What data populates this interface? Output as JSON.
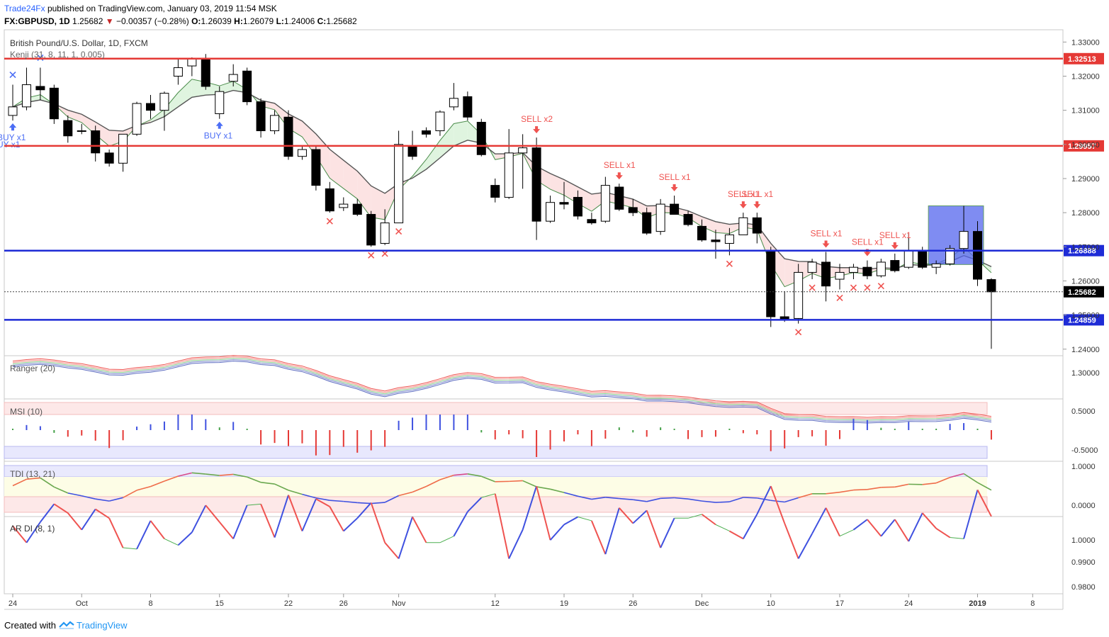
{
  "header": {
    "username": "Trade24Fx",
    "published_text": "published on TradingView.com, January 03, 2019 11:54 MSK",
    "symbol": "FX:GBPUSD, 1D",
    "last": "1.25682",
    "arrow": "▼",
    "change": "−0.00357 (−0.28%)",
    "o_label": "O:",
    "o_value": "1.26039",
    "h_label": "H:",
    "h_value": "1.26079",
    "l_label": "L:",
    "l_value": "1.24006",
    "c_label": "C:",
    "c_value": "1.25682"
  },
  "main_pane": {
    "title": "British Pound/U.S. Dollar, 1D, FXCM",
    "indicator_label": "Kenji (31, 8, 11, 1, 0.005)",
    "y_ticks": [
      "1.33000",
      "1.32000",
      "1.31000",
      "1.30000",
      "1.29000",
      "1.28000",
      "1.27000",
      "1.26000",
      "1.25000",
      "1.24000"
    ],
    "levels": [
      {
        "value": "1.32513",
        "color": "#e53935",
        "type": "resistance"
      },
      {
        "value": "1.29957",
        "color": "#e53935",
        "type": "resistance"
      },
      {
        "value": "1.26888",
        "color": "#1e2bd6",
        "type": "support"
      },
      {
        "value": "1.24859",
        "color": "#1e2bd6",
        "type": "support"
      }
    ],
    "last_price_label": "1.25682",
    "signals": [
      {
        "text": "BUY x1",
        "kind": "buy"
      },
      {
        "text": "BUY x1",
        "kind": "buy"
      },
      {
        "text": "UY x1",
        "kind": "buy"
      },
      {
        "text": "SELL x2",
        "kind": "sell"
      },
      {
        "text": "SELL x1",
        "kind": "sell"
      },
      {
        "text": "SELL x1",
        "kind": "sell"
      },
      {
        "text": "SELL x1",
        "kind": "sell"
      },
      {
        "text": "SELL x1",
        "kind": "sell"
      },
      {
        "text": "SELL x1",
        "kind": "sell"
      },
      {
        "text": "SELL x1",
        "kind": "sell"
      },
      {
        "text": "SELL x1",
        "kind": "sell"
      }
    ]
  },
  "ranger_pane": {
    "label": "Ranger (20)",
    "y_ticks": [
      "1.30000"
    ]
  },
  "msi_pane": {
    "label": "MSI (10)",
    "y_ticks": [
      "0.5000",
      "-0.5000"
    ]
  },
  "tdi_pane": {
    "label": "TDI (13, 21)",
    "y_ticks": [
      "1.0000",
      "0.0000"
    ]
  },
  "ardi_pane": {
    "label": "AR DI (8, 1)",
    "y_ticks": [
      "1.0000",
      "0.9900",
      "0.9800"
    ]
  },
  "x_axis": {
    "ticks": [
      "24",
      "Oct",
      "8",
      "15",
      "22",
      "26",
      "Nov",
      "12",
      "19",
      "26",
      "Dec",
      "10",
      "17",
      "24",
      "2019",
      "8"
    ]
  },
  "footer": {
    "created_with": "Created with",
    "brand": "TradingView"
  },
  "colors": {
    "bull": "#ffffff",
    "bear": "#000000",
    "resistance": "#e53935",
    "support": "#1e2bd6",
    "sell": "#ef5350",
    "buy": "#4c6ef5",
    "accent": "#2962ff"
  },
  "chart_data": {
    "type": "candlestick",
    "title": "British Pound/U.S. Dollar, 1D, FXCM",
    "ylim": [
      1.2385,
      1.3336
    ],
    "ohlc": [
      [
        1.3085,
        1.3175,
        1.307,
        1.311
      ],
      [
        1.311,
        1.3225,
        1.31,
        1.3175
      ],
      [
        1.317,
        1.3225,
        1.313,
        1.316
      ],
      [
        1.3165,
        1.3175,
        1.306,
        1.3075
      ],
      [
        1.307,
        1.3085,
        1.3005,
        1.3025
      ],
      [
        1.304,
        1.306,
        1.303,
        1.304
      ],
      [
        1.304,
        1.3055,
        1.295,
        1.2975
      ],
      [
        1.2975,
        1.2985,
        1.2935,
        1.2945
      ],
      [
        1.2945,
        1.303,
        1.292,
        1.303
      ],
      [
        1.303,
        1.3125,
        1.3025,
        1.312
      ],
      [
        1.312,
        1.3145,
        1.3075,
        1.31
      ],
      [
        1.31,
        1.3155,
        1.304,
        1.315
      ],
      [
        1.32,
        1.325,
        1.3175,
        1.3225
      ],
      [
        1.323,
        1.3255,
        1.32,
        1.325
      ],
      [
        1.325,
        1.3265,
        1.316,
        1.317
      ],
      [
        1.309,
        1.317,
        1.3075,
        1.3155
      ],
      [
        1.3185,
        1.3235,
        1.317,
        1.3205
      ],
      [
        1.3215,
        1.3225,
        1.3115,
        1.3125
      ],
      [
        1.3125,
        1.3135,
        1.302,
        1.304
      ],
      [
        1.304,
        1.31,
        1.303,
        1.3085
      ],
      [
        1.308,
        1.31,
        1.2955,
        1.2965
      ],
      [
        1.2965,
        1.2995,
        1.2955,
        1.2985
      ],
      [
        1.2985,
        1.2995,
        1.2865,
        1.288
      ],
      [
        1.287,
        1.289,
        1.28,
        1.2805
      ],
      [
        1.2815,
        1.2845,
        1.2805,
        1.2825
      ],
      [
        1.2825,
        1.284,
        1.279,
        1.2795
      ],
      [
        1.2795,
        1.2805,
        1.27,
        1.2705
      ],
      [
        1.271,
        1.281,
        1.2705,
        1.277
      ],
      [
        1.277,
        1.304,
        1.277,
        1.3
      ],
      [
        1.2995,
        1.304,
        1.2955,
        1.2965
      ],
      [
        1.304,
        1.305,
        1.302,
        1.303
      ],
      [
        1.304,
        1.31,
        1.3025,
        1.3095
      ],
      [
        1.311,
        1.318,
        1.31,
        1.3135
      ],
      [
        1.314,
        1.3155,
        1.307,
        1.308
      ],
      [
        1.3065,
        1.3075,
        1.2965,
        1.297
      ],
      [
        1.288,
        1.29,
        1.283,
        1.2845
      ],
      [
        1.2845,
        1.3045,
        1.284,
        1.2975
      ],
      [
        1.2975,
        1.303,
        1.287,
        1.299
      ],
      [
        1.299,
        1.302,
        1.272,
        1.2775
      ],
      [
        1.2775,
        1.285,
        1.277,
        1.283
      ],
      [
        1.283,
        1.289,
        1.281,
        1.2825
      ],
      [
        1.2845,
        1.2865,
        1.278,
        1.279
      ],
      [
        1.278,
        1.28,
        1.2765,
        1.277
      ],
      [
        1.2775,
        1.2905,
        1.277,
        1.288
      ],
      [
        1.2875,
        1.2885,
        1.2805,
        1.281
      ],
      [
        1.2815,
        1.284,
        1.279,
        1.28
      ],
      [
        1.28,
        1.2815,
        1.2735,
        1.274
      ],
      [
        1.2745,
        1.284,
        1.2735,
        1.2825
      ],
      [
        1.2825,
        1.285,
        1.2795,
        1.2795
      ],
      [
        1.2795,
        1.2805,
        1.276,
        1.2765
      ],
      [
        1.276,
        1.278,
        1.2715,
        1.272
      ],
      [
        1.272,
        1.275,
        1.2665,
        1.2715
      ],
      [
        1.271,
        1.2755,
        1.2675,
        1.2735
      ],
      [
        1.2735,
        1.28,
        1.2735,
        1.2785
      ],
      [
        1.2785,
        1.28,
        1.271,
        1.274
      ],
      [
        1.269,
        1.27,
        1.2465,
        1.2495
      ],
      [
        1.2495,
        1.257,
        1.248,
        1.2485
      ],
      [
        1.249,
        1.265,
        1.2475,
        1.2625
      ],
      [
        1.2625,
        1.2665,
        1.2605,
        1.2655
      ],
      [
        1.2655,
        1.2685,
        1.254,
        1.2585
      ],
      [
        1.2605,
        1.265,
        1.2575,
        1.2625
      ],
      [
        1.2625,
        1.265,
        1.2605,
        1.264
      ],
      [
        1.264,
        1.266,
        1.2605,
        1.2615
      ],
      [
        1.2615,
        1.2665,
        1.261,
        1.2655
      ],
      [
        1.266,
        1.268,
        1.2625,
        1.263
      ],
      [
        1.264,
        1.274,
        1.2635,
        1.269
      ],
      [
        1.269,
        1.27,
        1.2635,
        1.264
      ],
      [
        1.264,
        1.266,
        1.262,
        1.265
      ],
      [
        1.265,
        1.2705,
        1.2645,
        1.2695
      ],
      [
        1.2695,
        1.282,
        1.268,
        1.2745
      ],
      [
        1.2745,
        1.2775,
        1.2585,
        1.2605
      ],
      [
        1.2604,
        1.2608,
        1.2401,
        1.2568
      ]
    ]
  }
}
